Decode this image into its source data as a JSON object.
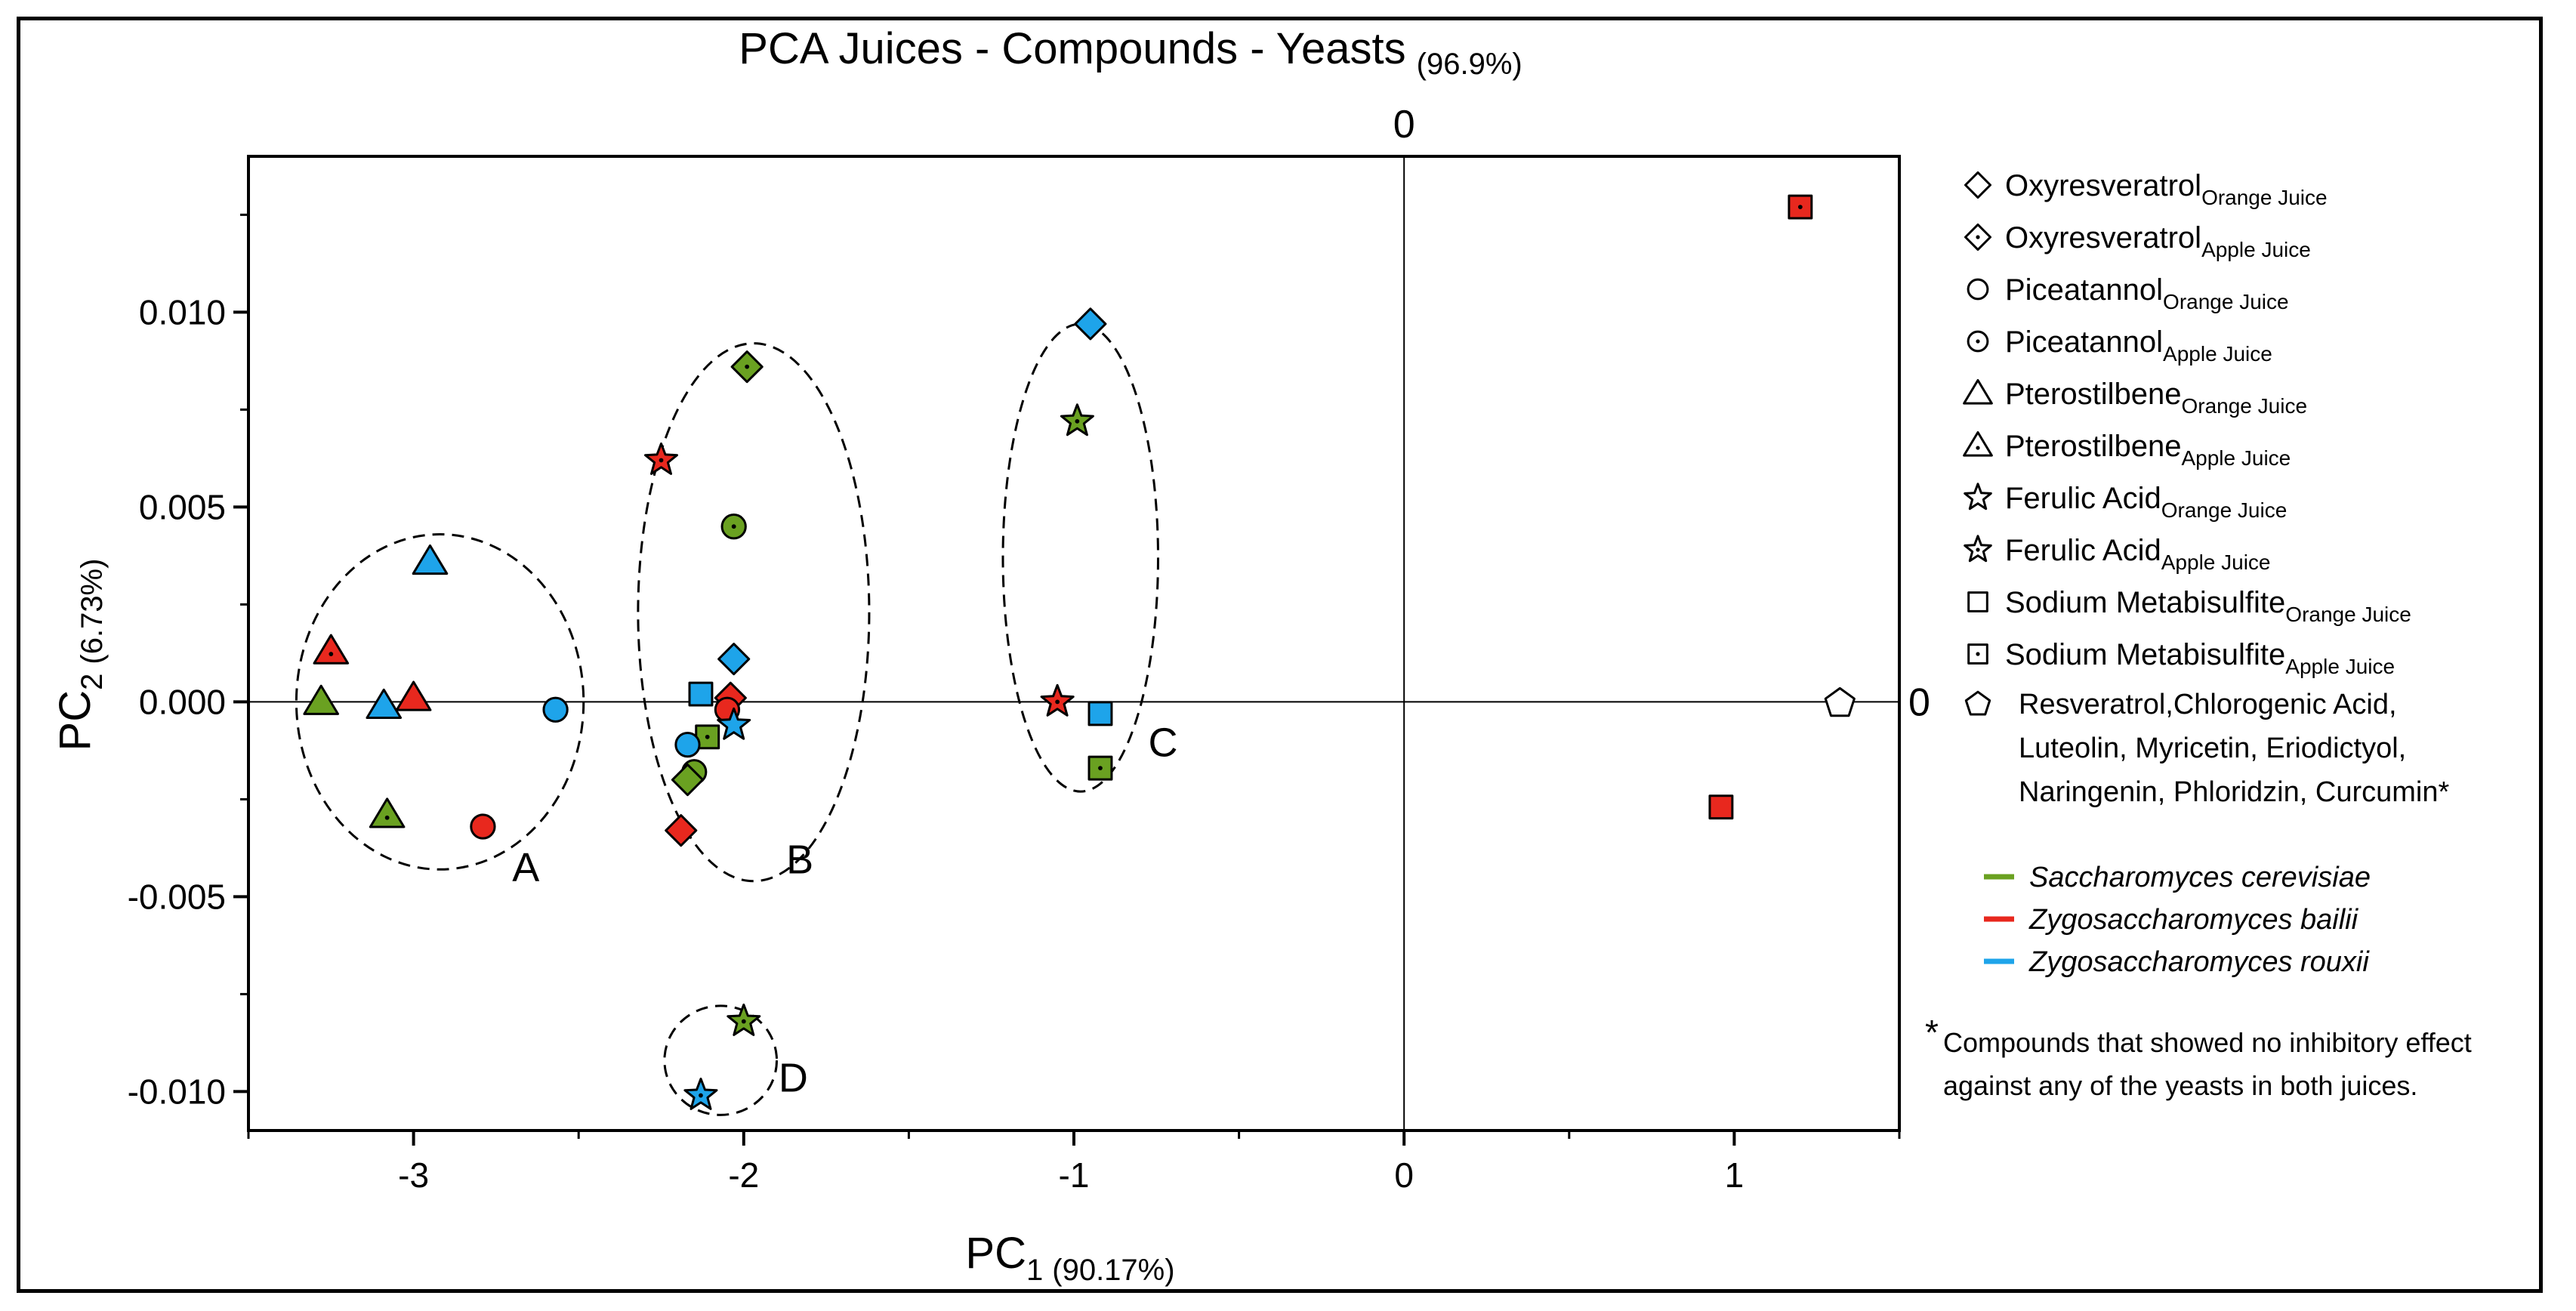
{
  "chart_data": {
    "type": "scatter",
    "title": "PCA Juices - Compounds - Yeasts",
    "title_variance": "(96.9%)",
    "xlabel": "PC",
    "xlabel_sub": "1",
    "xlabel_variance": "(90.17%)",
    "ylabel": "PC",
    "ylabel_sub": "2",
    "ylabel_variance": "(6.73%)",
    "xlim": [
      -3.5,
      1.5
    ],
    "ylim": [
      -0.011,
      0.014
    ],
    "xticks": [
      {
        "value": -3,
        "label": "-3"
      },
      {
        "value": -2,
        "label": "-2"
      },
      {
        "value": -1,
        "label": "-1"
      },
      {
        "value": 0,
        "label": "0"
      },
      {
        "value": 1,
        "label": "1"
      }
    ],
    "yticks": [
      {
        "value": 0.01,
        "label": "0.010"
      },
      {
        "value": 0.005,
        "label": "0.005"
      },
      {
        "value": 0.0,
        "label": "0.000"
      },
      {
        "value": -0.005,
        "label": "-0.005"
      },
      {
        "value": -0.01,
        "label": "-0.010"
      }
    ],
    "top_zero_label": "0",
    "right_zero_label": "0",
    "colors": {
      "sc": "#6aa121",
      "zb": "#e8281e",
      "zr": "#1ea4ea",
      "white": "#ffffff"
    },
    "points": [
      {
        "x": -3.28,
        "y": 0.0,
        "marker": "triangle",
        "yeast": "sc"
      },
      {
        "x": -3.08,
        "y": -0.0029,
        "marker": "triangle_dot",
        "yeast": "sc"
      },
      {
        "x": -3.25,
        "y": 0.0013,
        "marker": "triangle_dot",
        "yeast": "zb"
      },
      {
        "x": -3.0,
        "y": 0.0001,
        "marker": "triangle",
        "yeast": "zb"
      },
      {
        "x": -3.09,
        "y": -0.0001,
        "marker": "triangle",
        "yeast": "zr"
      },
      {
        "x": -2.95,
        "y": 0.0036,
        "marker": "triangle",
        "yeast": "zr"
      },
      {
        "x": -2.79,
        "y": -0.0032,
        "marker": "circle",
        "yeast": "zb"
      },
      {
        "x": -2.57,
        "y": -0.0002,
        "marker": "circle",
        "yeast": "zr"
      },
      {
        "x": -1.99,
        "y": 0.0086,
        "marker": "diamond_dot",
        "yeast": "sc"
      },
      {
        "x": -2.25,
        "y": 0.0062,
        "marker": "star_dot",
        "yeast": "zb"
      },
      {
        "x": -2.03,
        "y": 0.0045,
        "marker": "circle_dot",
        "yeast": "sc"
      },
      {
        "x": -2.03,
        "y": 0.0011,
        "marker": "diamond",
        "yeast": "zr"
      },
      {
        "x": -2.13,
        "y": 0.0002,
        "marker": "square",
        "yeast": "zr"
      },
      {
        "x": -2.04,
        "y": 0.0001,
        "marker": "diamond",
        "yeast": "zb"
      },
      {
        "x": -2.05,
        "y": -0.0002,
        "marker": "circle",
        "yeast": "zb"
      },
      {
        "x": -2.03,
        "y": -0.0006,
        "marker": "star",
        "yeast": "zr"
      },
      {
        "x": -2.11,
        "y": -0.0009,
        "marker": "square_dot",
        "yeast": "sc"
      },
      {
        "x": -2.17,
        "y": -0.0011,
        "marker": "circle",
        "yeast": "zr"
      },
      {
        "x": -2.15,
        "y": -0.0018,
        "marker": "circle",
        "yeast": "sc"
      },
      {
        "x": -2.17,
        "y": -0.002,
        "marker": "diamond",
        "yeast": "sc"
      },
      {
        "x": -2.19,
        "y": -0.0033,
        "marker": "diamond",
        "yeast": "zb"
      },
      {
        "x": -0.95,
        "y": 0.0097,
        "marker": "diamond",
        "yeast": "zr"
      },
      {
        "x": -0.99,
        "y": 0.0072,
        "marker": "star_dot",
        "yeast": "sc"
      },
      {
        "x": -1.05,
        "y": 0.0,
        "marker": "star_dot",
        "yeast": "zb"
      },
      {
        "x": -0.92,
        "y": -0.0003,
        "marker": "square",
        "yeast": "zr"
      },
      {
        "x": -0.92,
        "y": -0.0017,
        "marker": "square_dot",
        "yeast": "sc"
      },
      {
        "x": -2.0,
        "y": -0.0082,
        "marker": "star_dot",
        "yeast": "sc"
      },
      {
        "x": -2.13,
        "y": -0.0101,
        "marker": "star_dot",
        "yeast": "zr"
      },
      {
        "x": 1.2,
        "y": 0.0127,
        "marker": "square_dot",
        "yeast": "zb"
      },
      {
        "x": 0.96,
        "y": -0.0027,
        "marker": "square",
        "yeast": "zb"
      },
      {
        "x": 1.32,
        "y": 0.0,
        "marker": "pentagon",
        "yeast": "white"
      }
    ],
    "clusters": [
      {
        "label": "A",
        "cx": -2.92,
        "cy": 0.0,
        "rx": 0.435,
        "ry": 0.0043,
        "lx": -2.66,
        "ly": -0.0046
      },
      {
        "label": "B",
        "cx": -1.97,
        "cy": 0.0023,
        "rx": 0.35,
        "ry": 0.0069,
        "lx": -1.83,
        "ly": -0.0044
      },
      {
        "label": "C",
        "cx": -0.98,
        "cy": 0.0037,
        "rx": 0.235,
        "ry": 0.006,
        "lx": -0.73,
        "ly": -0.0014
      },
      {
        "label": "D",
        "cx": -2.07,
        "cy": -0.0092,
        "rx": 0.17,
        "ry": 0.0014,
        "lx": -1.85,
        "ly": -0.01
      }
    ],
    "legend": {
      "position": "right",
      "compounds": [
        {
          "marker": "diamond",
          "name": "Oxyresveratrol",
          "sub": "Orange Juice"
        },
        {
          "marker": "diamond_dot",
          "name": "Oxyresveratrol",
          "sub": "Apple Juice"
        },
        {
          "marker": "circle",
          "name": "Piceatannol",
          "sub": "Orange Juice"
        },
        {
          "marker": "circle_dot",
          "name": "Piceatannol",
          "sub": "Apple Juice"
        },
        {
          "marker": "triangle",
          "name": "Pterostilbene",
          "sub": "Orange Juice"
        },
        {
          "marker": "triangle_dot",
          "name": "Pterostilbene",
          "sub": "Apple Juice"
        },
        {
          "marker": "star",
          "name": "Ferulic Acid",
          "sub": "Orange Juice"
        },
        {
          "marker": "star_dot",
          "name": "Ferulic Acid",
          "sub": "Apple Juice"
        },
        {
          "marker": "square",
          "name": "Sodium Metabisulfite",
          "sub": "Orange Juice"
        },
        {
          "marker": "square_dot",
          "name": "Sodium Metabisulfite",
          "sub": "Apple Juice"
        }
      ],
      "pentagon_lines": [
        "Resveratrol,Chlorogenic Acid,",
        "Luteolin, Myricetin, Eriodictyol,",
        "Naringenin, Phloridzin, Curcumin*"
      ],
      "yeasts": [
        {
          "key": "sc",
          "name": "Saccharomyces cerevisiae"
        },
        {
          "key": "zb",
          "name": "Zygosaccharomyces bailii"
        },
        {
          "key": "zr",
          "name": "Zygosaccharomyces rouxii"
        }
      ],
      "footnote_mark": "*",
      "footnote_lines": [
        "Compounds that showed no inhibitory effect",
        "against any of the yeasts in both juices."
      ]
    }
  }
}
